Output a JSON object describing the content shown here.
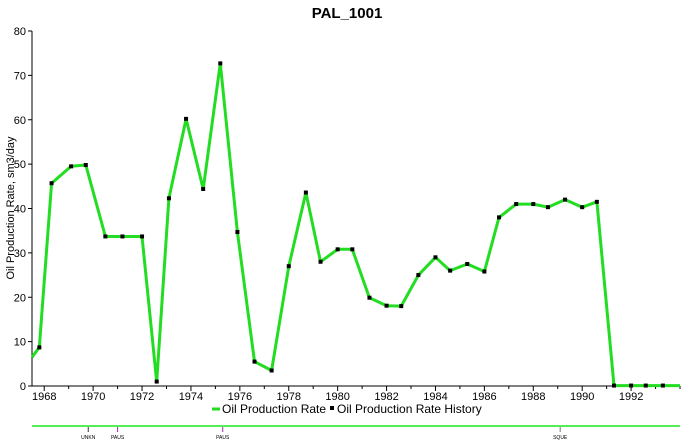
{
  "chart_data": {
    "type": "line",
    "title": "PAL_1001",
    "ylabel": "Oil Production Rate, sm3/day",
    "xlabel": "",
    "xlim": [
      1967.5,
      1994.0
    ],
    "ylim": [
      0,
      80
    ],
    "yticks": [
      0,
      10,
      20,
      30,
      40,
      50,
      60,
      70,
      80
    ],
    "xticks": [
      1968,
      1970,
      1972,
      1974,
      1976,
      1978,
      1980,
      1982,
      1984,
      1986,
      1988,
      1990,
      1992
    ],
    "grid": false,
    "legend_position": "bottom",
    "series": [
      {
        "name": "Oil Production Rate",
        "color": "#22dd22",
        "style": "line",
        "x": [
          1967.5,
          1967.8,
          1968.3,
          1969.1,
          1969.7,
          1970.5,
          1971.2,
          1972.0,
          1972.6,
          1973.1,
          1973.8,
          1974.5,
          1975.2,
          1975.9,
          1976.6,
          1977.3,
          1978.0,
          1978.7,
          1979.3,
          1980.0,
          1980.6,
          1981.3,
          1982.0,
          1982.6,
          1983.3,
          1984.0,
          1984.6,
          1985.3,
          1986.0,
          1986.6,
          1987.3,
          1988.0,
          1988.6,
          1989.3,
          1990.0,
          1990.6,
          1991.3,
          1992.0,
          1992.6,
          1993.3,
          1994.0
        ],
        "values": [
          6.5,
          8.7,
          45.7,
          49.5,
          49.8,
          33.7,
          33.7,
          33.7,
          1.0,
          42.3,
          60.2,
          44.4,
          72.7,
          34.7,
          5.5,
          3.5,
          27.0,
          43.6,
          28.0,
          30.8,
          30.8,
          19.9,
          18.1,
          18.0,
          25.0,
          29.0,
          26.0,
          27.5,
          25.8,
          38.0,
          41.0,
          41.0,
          40.3,
          42.0,
          40.3,
          41.5,
          0.1,
          0.1,
          0.1,
          0.1,
          0.1
        ]
      },
      {
        "name": "Oil Production Rate History",
        "color": "#000000",
        "style": "marker",
        "x": [
          1967.8,
          1968.3,
          1969.1,
          1969.7,
          1970.5,
          1971.2,
          1972.0,
          1972.6,
          1973.1,
          1973.8,
          1974.5,
          1975.2,
          1975.9,
          1976.6,
          1977.3,
          1978.0,
          1978.7,
          1979.3,
          1980.0,
          1980.6,
          1981.3,
          1982.0,
          1982.6,
          1983.3,
          1984.0,
          1984.6,
          1985.3,
          1986.0,
          1986.6,
          1987.3,
          1988.0,
          1988.6,
          1989.3,
          1990.0,
          1990.6,
          1991.3,
          1992.0,
          1992.6,
          1993.3
        ],
        "values": [
          8.7,
          45.7,
          49.5,
          49.8,
          33.7,
          33.7,
          33.7,
          1.0,
          42.3,
          60.2,
          44.4,
          72.7,
          34.7,
          5.5,
          3.5,
          27.0,
          43.6,
          28.0,
          30.8,
          30.8,
          19.9,
          18.1,
          18.0,
          25.0,
          29.0,
          26.0,
          27.5,
          25.8,
          38.0,
          41.0,
          41.0,
          40.3,
          42.0,
          40.3,
          41.5,
          0.1,
          0.1,
          0.1,
          0.1
        ]
      }
    ],
    "events": [
      {
        "label": "UNKN",
        "x": 1969.8,
        "color": "#333333"
      },
      {
        "label": "PAUS",
        "x": 1971.0,
        "color": "#aa22aa"
      },
      {
        "label": "PAUS",
        "x": 1975.3,
        "color": "#aa22aa"
      },
      {
        "label": "SQUE",
        "x": 1989.1,
        "color": "#777777"
      }
    ]
  }
}
